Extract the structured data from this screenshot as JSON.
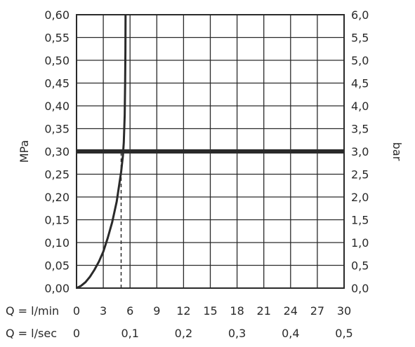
{
  "chart_data": {
    "type": "line",
    "ylabel_left": "MPa",
    "ylabel_right": "bar",
    "ylim_left": [
      0,
      0.6
    ],
    "ylim_right": [
      0,
      6.0
    ],
    "xlim": [
      0,
      30
    ],
    "grid": true,
    "y_ticks_left": [
      "0,00",
      "0,05",
      "0,10",
      "0,15",
      "0,20",
      "0,25",
      "0,30",
      "0,35",
      "0,40",
      "0,45",
      "0,50",
      "0,55",
      "0,60"
    ],
    "y_ticks_right": [
      "0,0",
      "0,5",
      "1,0",
      "1,5",
      "2,0",
      "2,5",
      "3,0",
      "3,5",
      "4,0",
      "4,5",
      "5,0",
      "5,5",
      "6,0"
    ],
    "x_rows": [
      {
        "label": "Q = l/min",
        "ticks": [
          {
            "v": 0,
            "t": "0"
          },
          {
            "v": 3,
            "t": "3"
          },
          {
            "v": 6,
            "t": "6"
          },
          {
            "v": 9,
            "t": "9"
          },
          {
            "v": 12,
            "t": "12"
          },
          {
            "v": 15,
            "t": "15"
          },
          {
            "v": 18,
            "t": "18"
          },
          {
            "v": 21,
            "t": "21"
          },
          {
            "v": 24,
            "t": "24"
          },
          {
            "v": 27,
            "t": "27"
          },
          {
            "v": 30,
            "t": "30"
          }
        ]
      },
      {
        "label": "Q = l/sec",
        "ticks": [
          {
            "v": 0,
            "t": "0"
          },
          {
            "v": 6,
            "t": "0,1"
          },
          {
            "v": 12,
            "t": "0,2"
          },
          {
            "v": 18,
            "t": "0,3"
          },
          {
            "v": 24,
            "t": "0,4"
          },
          {
            "v": 30,
            "t": "0,5"
          }
        ]
      }
    ],
    "series": [
      {
        "values": [
          [
            0,
            0
          ],
          [
            0.5,
            0.005
          ],
          [
            1,
            0.013
          ],
          [
            1.5,
            0.025
          ],
          [
            2,
            0.04
          ],
          [
            2.5,
            0.058
          ],
          [
            3,
            0.08
          ],
          [
            3.5,
            0.11
          ],
          [
            4,
            0.145
          ],
          [
            4.5,
            0.19
          ],
          [
            5,
            0.255
          ],
          [
            5.2,
            0.29
          ],
          [
            5.3,
            0.32
          ],
          [
            5.4,
            0.38
          ],
          [
            5.45,
            0.45
          ],
          [
            5.48,
            0.52
          ],
          [
            5.5,
            0.6
          ]
        ]
      }
    ],
    "reference_lines": [
      {
        "axis": "y",
        "value": 0.3,
        "style": "thick"
      },
      {
        "axis": "x",
        "value": 5,
        "style": "dashed",
        "y_to": 0.3
      }
    ]
  }
}
